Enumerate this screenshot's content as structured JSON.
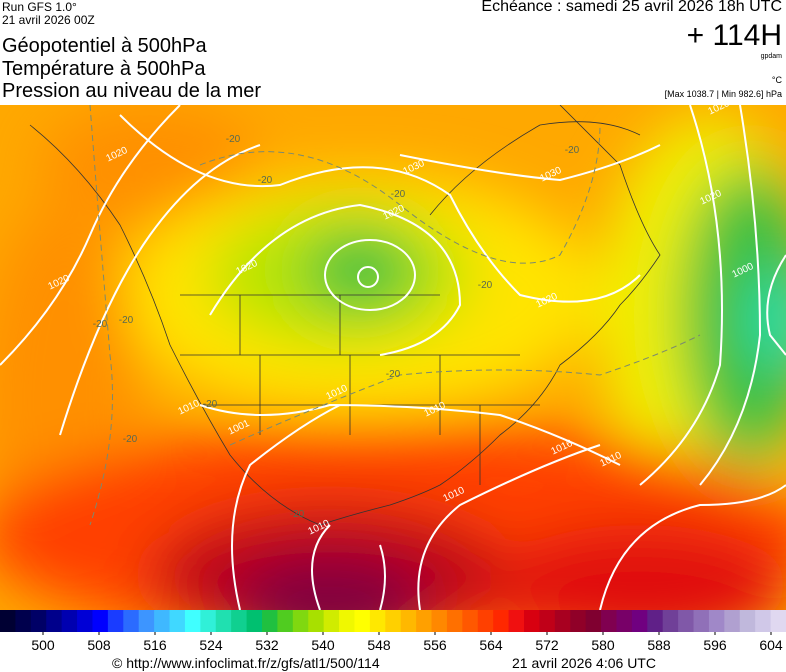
{
  "header": {
    "run": "Run GFS 1.0°",
    "date": "21 avril 2026 00Z",
    "valid": "Echéance : samedi 25 avril 2026 18h UTC",
    "lead": "+ 114H",
    "unit_geo": "gpdam",
    "unit_temp": "°C",
    "range": "[Max 1038.7 | Min 982.6] hPa",
    "titles": [
      "Géopotentiel à 500hPa",
      "Température à 500hPa",
      "Pression au niveau de la mer"
    ]
  },
  "map": {
    "isobar_labels": [
      "1020",
      "1030",
      "1030",
      "1020",
      "1020",
      "1020",
      "1020",
      "1010",
      "1001",
      "1010",
      "1010",
      "1016",
      "1010",
      "1010",
      "1010",
      "1000",
      "1020",
      "1020"
    ],
    "temp_labels": [
      "-20",
      "-20",
      "-20",
      "-20",
      "-20",
      "-20",
      "-20",
      "-20",
      "-20",
      "-20",
      "-20"
    ]
  },
  "colorbar": {
    "ticks": [
      500,
      508,
      516,
      524,
      532,
      540,
      548,
      556,
      564,
      572,
      580,
      588,
      596,
      604
    ],
    "colors": [
      "#000033",
      "#00004d",
      "#000066",
      "#00008b",
      "#0000b0",
      "#0000d6",
      "#0000ff",
      "#1a3cff",
      "#2b6bff",
      "#3d95ff",
      "#3fb8ff",
      "#40d8ff",
      "#40ffff",
      "#30f0d8",
      "#20e0b0",
      "#10d090",
      "#00c070",
      "#20c040",
      "#50cc20",
      "#80d810",
      "#a8e000",
      "#d0ec00",
      "#f0f800",
      "#ffff00",
      "#ffe800",
      "#ffd000",
      "#ffb800",
      "#ffa000",
      "#ff8800",
      "#ff7000",
      "#ff5800",
      "#ff4000",
      "#ff2800",
      "#f01010",
      "#d80010",
      "#c00018",
      "#a80020",
      "#900028",
      "#800030",
      "#800050",
      "#780068",
      "#700080",
      "#602088",
      "#704098",
      "#8058a8",
      "#9070b8",
      "#a088c8",
      "#b0a0d0",
      "#c0b8dc",
      "#d0c8e8",
      "#e0d8f0"
    ]
  },
  "footer": {
    "url": "© http://www.infoclimat.fr/z/gfs/atl1/500/114",
    "generated": "21 avril 2026  4:06 UTC"
  }
}
